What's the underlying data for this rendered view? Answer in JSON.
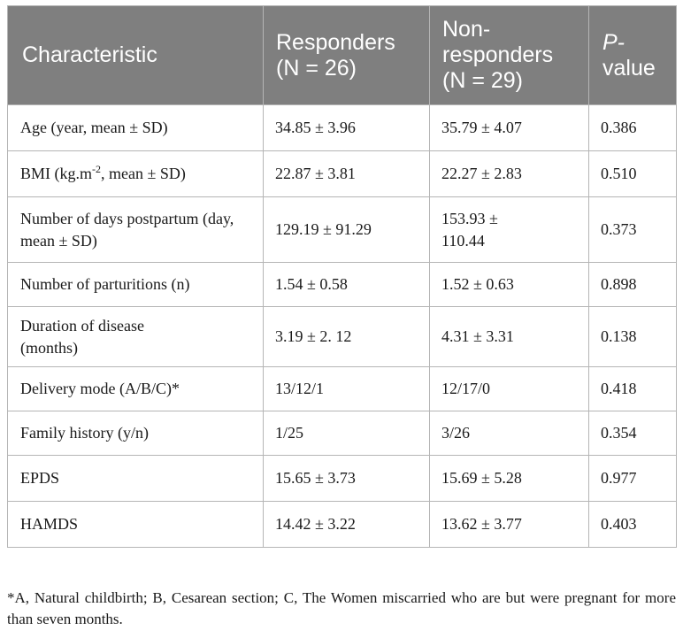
{
  "table": {
    "headers": {
      "characteristic": "Characteristic",
      "responders": "Responders (N = 26)",
      "nonresponders": "Non-responders (N = 29)",
      "p_value_italic": "P-",
      "p_value_rest": "value"
    },
    "rows": [
      {
        "characteristic": "Age (year, mean ± SD)",
        "responders": "34.85 ± 3.96",
        "nonresponders": "35.79 ± 4.07",
        "p": "0.386"
      },
      {
        "characteristic_pre": "BMI (kg.m",
        "characteristic_sup": "-2",
        "characteristic_post": ", mean ± SD)",
        "responders": "22.87 ± 3.81",
        "nonresponders": "22.27 ± 2.83",
        "p": "0.510"
      },
      {
        "characteristic": "Number of days postpartum (day, mean ± SD)",
        "responders": "129.19 ± 91.29",
        "nonresponders": "153.93 ± 110.44",
        "p": "0.373"
      },
      {
        "characteristic": "Number of parturitions (n)",
        "responders": "1.54 ± 0.58",
        "nonresponders": "1.52 ± 0.63",
        "p": "0.898"
      },
      {
        "characteristic": "Duration of disease (months)",
        "responders": "3.19 ± 2. 12",
        "nonresponders": "4.31 ± 3.31",
        "p": "0.138"
      },
      {
        "characteristic": "Delivery mode (A/B/C)*",
        "responders": "13/12/1",
        "nonresponders": "12/17/0",
        "p": "0.418"
      },
      {
        "characteristic": "Family history (y/n)",
        "responders": "1/25",
        "nonresponders": "3/26",
        "p": "0.354"
      },
      {
        "characteristic": "EPDS",
        "responders": "15.65 ± 3.73",
        "nonresponders": "15.69 ± 5.28",
        "p": "0.977"
      },
      {
        "characteristic": "HAMDS",
        "responders": "14.42 ± 3.22",
        "nonresponders": "13.62 ± 3.77",
        "p": "0.403"
      }
    ]
  },
  "footnote": "*A, Natural childbirth; B, Cesarean section; C, The Women miscarried who are but were pregnant for more than seven months."
}
